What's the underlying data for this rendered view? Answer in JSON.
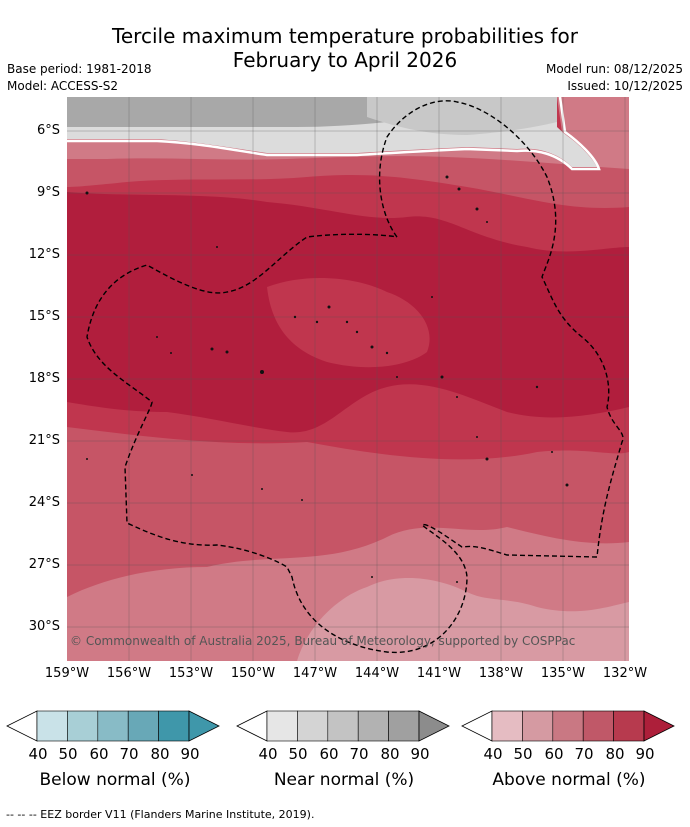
{
  "header": {
    "title_line1": "Tercile maximum temperature probabilities for",
    "title_line2": "February to April 2026",
    "base_period": "Base period: 1981-2018",
    "model": "Model: ACCESS-S2",
    "model_run": "Model run: 08/12/2025",
    "issued": "Issued: 10/12/2025"
  },
  "map": {
    "lat_labels": [
      "6°S",
      "9°S",
      "12°S",
      "15°S",
      "18°S",
      "21°S",
      "24°S",
      "27°S",
      "30°S"
    ],
    "lon_labels": [
      "159°W",
      "156°W",
      "153°W",
      "150°W",
      "147°W",
      "144°W",
      "141°W",
      "138°W",
      "135°W",
      "132°W"
    ],
    "copyright": "© Commonwealth of Australia 2025, Bureau of Meteorology, supported by COSPPac",
    "colors": {
      "above_90": "#b11e3d",
      "above_80": "#c0364e",
      "above_70": "#c65566",
      "above_60": "#d07a86",
      "above_50": "#d89aa3",
      "near_60": "#c8c8c8",
      "near_70": "#a8a8a8",
      "near_50": "#dcdcdc"
    }
  },
  "colorbars": [
    {
      "label": "Below normal (%)",
      "ticks": [
        "40",
        "50",
        "60",
        "70",
        "80",
        "90"
      ],
      "colors": [
        "#ffffff",
        "#c9e2e8",
        "#a8cfd6",
        "#88bbc6",
        "#68a8b7",
        "#3f97aa",
        "#3f97aa"
      ]
    },
    {
      "label": "Near normal (%)",
      "ticks": [
        "40",
        "50",
        "60",
        "70",
        "80",
        "90"
      ],
      "colors": [
        "#ffffff",
        "#e6e6e6",
        "#d4d4d4",
        "#c3c3c3",
        "#b2b2b2",
        "#a0a0a0",
        "#8c8c8c"
      ]
    },
    {
      "label": "Above normal (%)",
      "ticks": [
        "40",
        "50",
        "60",
        "70",
        "80",
        "90"
      ],
      "colors": [
        "#ffffff",
        "#e5bcc2",
        "#d59aa2",
        "#c97883",
        "#c05868",
        "#b73a4e",
        "#ad1f3a"
      ]
    }
  ],
  "footer": "--  --  -- EEZ border V11 (Flanders Marine Institute, 2019)."
}
